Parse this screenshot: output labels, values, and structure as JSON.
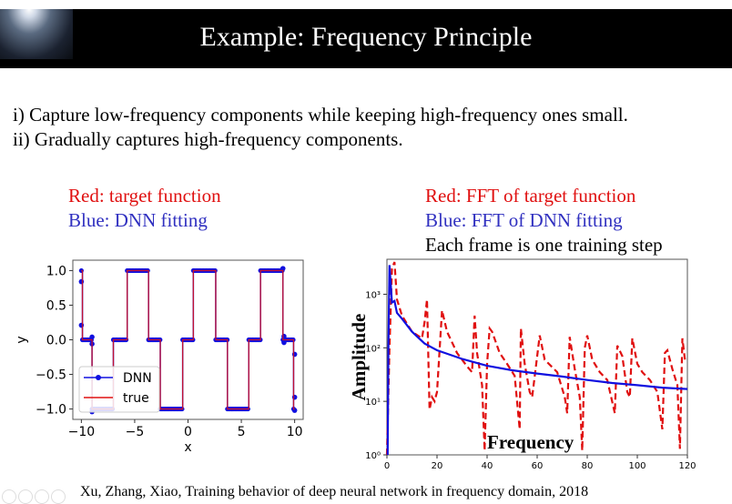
{
  "slide": {
    "title": "Example: Frequency Principle",
    "bullets": [
      "i) Capture low-frequency components while keeping high-frequency ones small.",
      "ii) Gradually captures high-frequency components."
    ],
    "left_caption": {
      "red": "Red: target function",
      "blue": "Blue: DNN fitting"
    },
    "right_caption": {
      "red": "Red: FFT of target function",
      "blue": "Blue: FFT of DNN fitting",
      "note": "Each frame is one training step"
    },
    "footer": "Xu, Zhang, Xiao, Training behavior of deep neural network in frequency domain, 2018"
  },
  "colors": {
    "target": "#e01010",
    "dnn": "#1010e0",
    "header_bg": "#000000"
  },
  "chart_data": [
    {
      "type": "line",
      "xlabel": "x",
      "ylabel": "y",
      "xlim": [
        -10.8,
        10.8
      ],
      "ylim": [
        -1.15,
        1.15
      ],
      "xticks": [
        -10,
        -5,
        0,
        5,
        10
      ],
      "yticks": [
        1.0,
        0.5,
        0.0,
        -0.5,
        -1.0
      ],
      "xtick_labels": [
        "−10",
        "−5",
        "0",
        "5",
        "10"
      ],
      "ytick_labels": [
        "1.0",
        "0.5",
        "0.0",
        "−0.5",
        "−1.0"
      ],
      "legend": {
        "placement": "lower-left",
        "entries": [
          "DNN",
          "true"
        ]
      },
      "true_steps": [
        [
          -10,
          -9.9,
          1
        ],
        [
          -9.9,
          -9,
          0
        ],
        [
          -9,
          -7,
          -1
        ],
        [
          -7,
          -5.7,
          0
        ],
        [
          -5.7,
          -3.7,
          1
        ],
        [
          -3.7,
          -2.6,
          0
        ],
        [
          -2.6,
          -0.5,
          -1
        ],
        [
          -0.5,
          0.5,
          0
        ],
        [
          0.5,
          2.6,
          1
        ],
        [
          2.6,
          3.7,
          0
        ],
        [
          3.7,
          5.7,
          -1
        ],
        [
          5.7,
          6.8,
          0
        ],
        [
          6.8,
          8.9,
          1
        ],
        [
          8.9,
          9.9,
          0
        ],
        [
          9.9,
          10,
          -1
        ]
      ],
      "dnn_extra_points": [
        [
          -10,
          0.84
        ],
        [
          -10,
          0.21
        ],
        [
          -9,
          0.04
        ],
        [
          -9,
          -0.06
        ],
        [
          -9,
          -1.04
        ],
        [
          9,
          0.05
        ],
        [
          9,
          -0.04
        ],
        [
          10,
          -0.21
        ],
        [
          10,
          -0.83
        ],
        [
          10,
          -1.02
        ],
        [
          8.9,
          1.03
        ]
      ]
    },
    {
      "type": "line",
      "xlabel": "Frequency",
      "ylabel": "Amplitude",
      "xlim": [
        0,
        120
      ],
      "ylim": [
        1,
        4500
      ],
      "yscale": "log",
      "xticks": [
        0,
        20,
        40,
        60,
        80,
        100,
        120
      ],
      "xtick_labels": [
        "0",
        "20",
        "40",
        "60",
        "80",
        "100",
        "120"
      ],
      "yticks": [
        1,
        10,
        100,
        1000
      ],
      "ytick_labels": [
        "10⁰",
        "10¹",
        "10²",
        "10³"
      ],
      "series": [
        {
          "color": "#e01010",
          "style": "dashed",
          "points": [
            [
              0,
              1
            ],
            [
              1,
              100
            ],
            [
              2,
              3000
            ],
            [
              3,
              4000
            ],
            [
              4,
              800
            ],
            [
              6,
              400
            ],
            [
              10,
              200
            ],
            [
              14,
              150
            ],
            [
              15,
              300
            ],
            [
              16,
              800
            ],
            [
              17,
              7
            ],
            [
              18,
              12
            ],
            [
              19,
              10
            ],
            [
              20,
              15
            ],
            [
              22,
              500
            ],
            [
              24,
              200
            ],
            [
              28,
              80
            ],
            [
              32,
              45
            ],
            [
              34,
              35
            ],
            [
              35,
              400
            ],
            [
              36,
              80
            ],
            [
              38,
              20
            ],
            [
              39,
              1.2
            ],
            [
              40,
              50
            ],
            [
              41,
              230
            ],
            [
              42,
              200
            ],
            [
              45,
              80
            ],
            [
              48,
              50
            ],
            [
              51,
              30
            ],
            [
              53,
              3
            ],
            [
              53.5,
              230
            ],
            [
              55,
              50
            ],
            [
              57,
              15
            ],
            [
              58,
              12
            ],
            [
              61,
              170
            ],
            [
              63,
              60
            ],
            [
              68,
              35
            ],
            [
              71,
              12
            ],
            [
              72,
              6
            ],
            [
              73,
              160
            ],
            [
              75,
              40
            ],
            [
              77,
              12
            ],
            [
              78,
              1.2
            ],
            [
              79,
              100
            ],
            [
              80,
              170
            ],
            [
              82,
              60
            ],
            [
              85,
              35
            ],
            [
              88,
              25
            ],
            [
              91,
              6
            ],
            [
              92,
              110
            ],
            [
              94,
              70
            ],
            [
              96,
              15
            ],
            [
              97,
              12
            ],
            [
              98,
              150
            ],
            [
              100,
              50
            ],
            [
              102,
              35
            ],
            [
              105,
              25
            ],
            [
              108,
              15
            ],
            [
              110,
              3
            ],
            [
              111,
              80
            ],
            [
              112,
              90
            ],
            [
              114,
              40
            ],
            [
              116,
              20
            ],
            [
              117,
              1.3
            ],
            [
              118,
              150
            ],
            [
              119,
              60
            ]
          ]
        },
        {
          "color": "#1010e0",
          "style": "solid",
          "points": [
            [
              0.3,
              1
            ],
            [
              0.6,
              100
            ],
            [
              1,
              3500
            ],
            [
              2,
              700
            ],
            [
              3,
              750
            ],
            [
              4,
              450
            ],
            [
              6,
              350
            ],
            [
              10,
              200
            ],
            [
              15,
              120
            ],
            [
              20,
              90
            ],
            [
              30,
              62
            ],
            [
              40,
              46
            ],
            [
              50,
              38
            ],
            [
              60,
              33
            ],
            [
              70,
              29
            ],
            [
              80,
              25
            ],
            [
              90,
              22
            ],
            [
              100,
              20
            ],
            [
              110,
              18
            ],
            [
              120,
              17
            ]
          ]
        }
      ]
    }
  ]
}
